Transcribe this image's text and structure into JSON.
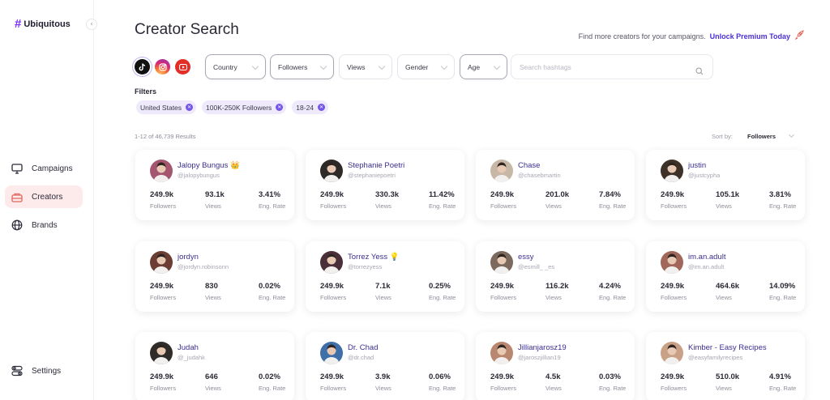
{
  "app": {
    "name": "Ubiquitous",
    "logo_symbol": "#",
    "collapse_icon": "‹"
  },
  "sidebar": {
    "items": [
      {
        "label": "Campaigns",
        "icon": "monitor-icon"
      },
      {
        "label": "Creators",
        "icon": "creators-icon",
        "active": true
      },
      {
        "label": "Brands",
        "icon": "globe-icon"
      }
    ],
    "settings": {
      "label": "Settings",
      "icon": "settings-toggle-icon"
    }
  },
  "header": {
    "title": "Creator Search",
    "promo_text": "Find more creators for your campaigns.",
    "promo_link": "Unlock Premium Today",
    "promo_icon": "rocket-icon"
  },
  "platforms": [
    {
      "name": "tiktok",
      "glyph": "♪",
      "selected": true
    },
    {
      "name": "instagram",
      "glyph": "◎"
    },
    {
      "name": "youtube",
      "glyph": "▶"
    }
  ],
  "dropdowns": [
    {
      "label": "Country",
      "selected": true
    },
    {
      "label": "Followers",
      "selected": true
    },
    {
      "label": "Views"
    },
    {
      "label": "Gender"
    },
    {
      "label": "Age",
      "selected": true
    }
  ],
  "search": {
    "placeholder": "Search hashtags",
    "value": ""
  },
  "filters": {
    "label": "Filters",
    "chips": [
      "United States",
      "100K-250K Followers",
      "18-24"
    ]
  },
  "results": {
    "summary": "1-12 of 46,739 Results",
    "sort_label": "Sort by:",
    "sort_value": "Followers"
  },
  "stat_labels": {
    "followers": "Followers",
    "views": "Views",
    "eng": "Eng. Rate"
  },
  "creators": [
    {
      "name": "Jalopy  Bungus 👑",
      "handle": "@jalopybungus",
      "followers": "249.9k",
      "views": "93.1k",
      "eng": "3.41%",
      "color": "#a4566f"
    },
    {
      "name": "Stephanie Poetri",
      "handle": "@stephaniepoetri",
      "followers": "249.9k",
      "views": "330.3k",
      "eng": "11.42%",
      "color": "#2d2a28"
    },
    {
      "name": "Chase",
      "handle": "@chasebmartin",
      "followers": "249.9k",
      "views": "201.0k",
      "eng": "7.84%",
      "color": "#c7b7a6"
    },
    {
      "name": "justin",
      "handle": "@justcypha",
      "followers": "249.9k",
      "views": "105.1k",
      "eng": "3.81%",
      "color": "#3d3128"
    },
    {
      "name": "jordyn",
      "handle": "@jordyn.robinsonn",
      "followers": "249.9k",
      "views": "830",
      "eng": "0.02%",
      "color": "#6b3d33"
    },
    {
      "name": "Torrez Yess 💡",
      "handle": "@torrezyess",
      "followers": "249.9k",
      "views": "7.1k",
      "eng": "0.25%",
      "color": "#4a2f3a"
    },
    {
      "name": "essy",
      "handle": "@esmill_ _es",
      "followers": "249.9k",
      "views": "116.2k",
      "eng": "4.24%",
      "color": "#7c6a5e"
    },
    {
      "name": "im.an.adult",
      "handle": "@im.an.adult",
      "followers": "249.9k",
      "views": "464.6k",
      "eng": "14.09%",
      "color": "#a0675a"
    },
    {
      "name": "Judah",
      "handle": "@_judahk",
      "followers": "249.9k",
      "views": "646",
      "eng": "0.02%",
      "color": "#2f2c2a"
    },
    {
      "name": "Dr. Chad",
      "handle": "@dr.chad",
      "followers": "249.9k",
      "views": "3.9k",
      "eng": "0.06%",
      "color": "#3f6fa8"
    },
    {
      "name": "Jillianjarosz19",
      "handle": "@jaroszjillian19",
      "followers": "249.9k",
      "views": "4.5k",
      "eng": "0.03%",
      "color": "#b98770"
    },
    {
      "name": "Kimber - Easy Recipes",
      "handle": "@easyfamilyrecipes",
      "followers": "249.9k",
      "views": "510.0k",
      "eng": "4.91%",
      "color": "#c9a187"
    }
  ],
  "colors": {
    "accent": "#4b2fd6",
    "active_bg": "#fdeaea",
    "chip_bg": "#efeafb",
    "chip_x": "#7457e8"
  }
}
